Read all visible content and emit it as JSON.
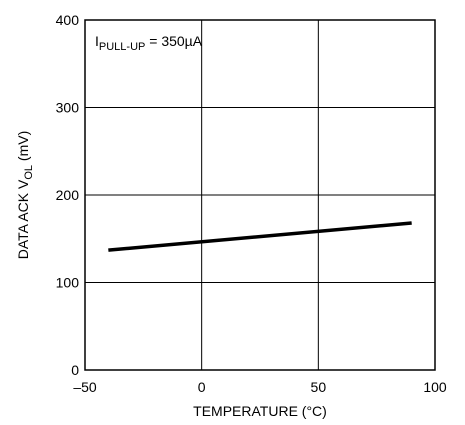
{
  "chart_data": {
    "type": "line",
    "title": "",
    "xlabel": "TEMPERATURE (°C)",
    "ylabel": {
      "main": "DATA ACK V",
      "sub": "OL",
      "unit": " (mV)"
    },
    "xlim": [
      -50,
      100
    ],
    "ylim": [
      0,
      400
    ],
    "x_ticks": [
      -50,
      0,
      50,
      100
    ],
    "x_tick_labels": [
      "–50",
      "0",
      "50",
      "100"
    ],
    "y_ticks": [
      0,
      100,
      200,
      300,
      400
    ],
    "y_tick_labels": [
      "0",
      "100",
      "200",
      "300",
      "400"
    ],
    "grid": true,
    "annotation": {
      "main": "I",
      "sub": "PULL-UP",
      "rest": " = 350µA"
    },
    "series": [
      {
        "x": [
          -40,
          90
        ],
        "y": [
          137,
          168
        ]
      }
    ],
    "line_color": "#000000"
  }
}
